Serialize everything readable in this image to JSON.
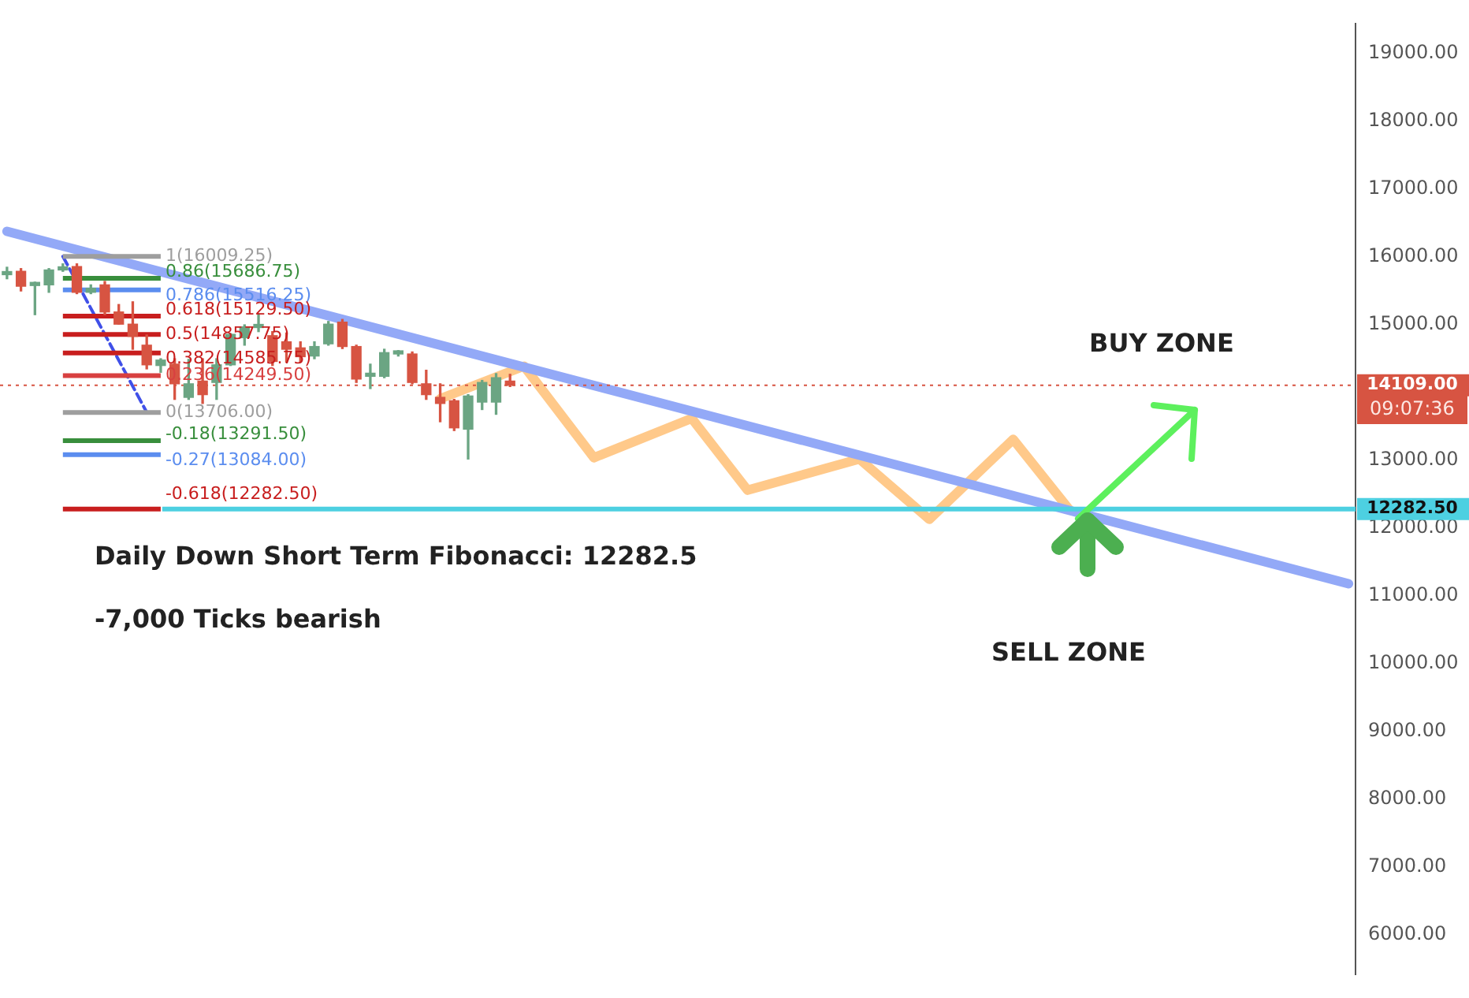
{
  "chart_data": {
    "type": "candlestick",
    "categories": [
      null,
      null,
      null,
      null,
      null,
      null,
      null,
      null,
      null,
      null,
      null,
      null,
      null,
      null,
      null,
      null,
      null,
      null,
      null,
      null,
      null,
      null,
      null,
      null,
      null,
      null,
      null,
      null,
      null,
      null,
      null,
      null,
      null,
      null,
      null,
      null,
      null,
      null,
      null,
      null,
      null,
      null,
      null,
      null,
      null,
      null,
      null,
      null,
      null,
      null,
      null,
      null,
      null,
      null,
      null,
      null,
      null,
      null,
      null,
      null,
      null,
      null,
      null,
      null,
      null,
      null,
      null,
      null,
      null,
      null,
      null,
      null,
      null,
      null,
      null,
      null,
      null,
      null,
      null,
      null,
      null,
      null,
      null,
      null,
      null,
      null,
      null,
      null,
      null,
      null,
      null,
      null,
      null,
      null,
      null,
      null,
      null
    ],
    "ohlc": [
      [
        15740,
        15850,
        15680,
        15760
      ],
      [
        15790,
        15830,
        15500,
        15570
      ],
      [
        15580,
        15630,
        15150,
        15600
      ],
      [
        15590,
        15830,
        15480,
        15810
      ],
      [
        15810,
        15900,
        15790,
        15850
      ],
      [
        15860,
        15900,
        15460,
        15480
      ],
      [
        15480,
        15590,
        15460,
        15540
      ],
      [
        15590,
        15640,
        15150,
        15190
      ],
      [
        15190,
        15300,
        15010,
        15010
      ],
      [
        15010,
        15340,
        14640,
        14830
      ],
      [
        14700,
        14850,
        14350,
        14410
      ],
      [
        14400,
        14500,
        14300,
        14480
      ],
      [
        14420,
        14500,
        13900,
        14130
      ],
      [
        13930,
        14490,
        13900,
        14130
      ],
      [
        14170,
        14500,
        13840,
        13970
      ],
      [
        14150,
        14500,
        13900,
        14410
      ],
      [
        14410,
        14870,
        14400,
        14860
      ],
      [
        14810,
        15000,
        14700,
        14970
      ],
      [
        14960,
        15160,
        14900,
        14970
      ],
      [
        14840,
        14900,
        14400,
        14460
      ],
      [
        14750,
        14880,
        14450,
        14640
      ],
      [
        14660,
        14750,
        14450,
        14530
      ],
      [
        14540,
        14750,
        14500,
        14680
      ],
      [
        14720,
        15050,
        14700,
        15010
      ],
      [
        15040,
        15080,
        14650,
        14680
      ],
      [
        14680,
        14700,
        14150,
        14200
      ],
      [
        14240,
        14420,
        14060,
        14250
      ],
      [
        14240,
        14640,
        14220,
        14590
      ],
      [
        14570,
        14620,
        14540,
        14580
      ],
      [
        14570,
        14600,
        14130,
        14150
      ],
      [
        14130,
        14330,
        13900,
        13970
      ],
      [
        13930,
        14130,
        13570,
        13840
      ],
      [
        13880,
        13900,
        13440,
        13480
      ],
      [
        13460,
        13970,
        13020,
        13950
      ],
      [
        13860,
        14180,
        13750,
        14150
      ],
      [
        13860,
        14280,
        13680,
        14220
      ],
      [
        14170,
        14270,
        14090,
        14109
      ],
      null,
      null,
      null,
      null,
      null,
      null,
      null,
      null,
      null,
      null,
      null,
      null,
      null,
      null,
      null,
      null,
      null,
      null,
      null,
      null,
      null,
      null,
      null,
      null,
      null,
      null,
      null,
      null,
      null,
      null,
      null,
      null,
      null,
      null,
      null,
      null,
      null,
      null,
      null,
      null,
      null,
      null,
      null,
      null,
      null,
      null,
      null,
      null,
      null,
      null,
      null,
      null,
      null,
      null,
      null,
      null,
      null,
      null,
      null,
      null
    ],
    "colors": [
      "#6ba583",
      "#d75442",
      "#6ba583",
      "#6ba583",
      "#6ba583",
      "#d75442",
      "#6ba583",
      "#d75442",
      "#d75442",
      "#d75442",
      "#d75442",
      "#6ba583",
      "#d75442",
      "#6ba583",
      "#d75442",
      "#6ba583",
      "#6ba583",
      "#6ba583",
      "#6ba583",
      "#d75442",
      "#d75442",
      "#d75442",
      "#6ba583",
      "#6ba583",
      "#d75442",
      "#d75442",
      "#6ba583",
      "#6ba583",
      "#6ba583",
      "#d75442",
      "#d75442",
      "#d75442",
      "#d75442",
      "#6ba583",
      "#6ba583",
      "#6ba583",
      "#d75442",
      null,
      null,
      null,
      null,
      null,
      null,
      null,
      null,
      null,
      null,
      null,
      null,
      null,
      null,
      null,
      null,
      null,
      null,
      null,
      null,
      null,
      null,
      null,
      null,
      null,
      null,
      null,
      null,
      null,
      null,
      null,
      null,
      null,
      null,
      null,
      null,
      null,
      null,
      null,
      null,
      null,
      null,
      null,
      null,
      null,
      null,
      null,
      null,
      null,
      null,
      null,
      null,
      null,
      null,
      null,
      null,
      null,
      null,
      null,
      null
    ],
    "series": [
      {
        "type": "line",
        "color": "#93a9f7",
        "line_style": "solid",
        "values": [
          16380,
          null,
          null,
          null,
          null,
          null,
          null,
          null,
          null,
          null,
          null,
          null,
          null,
          null,
          null,
          null,
          null,
          null,
          null,
          null,
          null,
          null,
          null,
          null,
          null,
          null,
          null,
          null,
          null,
          null,
          null,
          null,
          null,
          null,
          null,
          null,
          null,
          null,
          null,
          null,
          null,
          null,
          null,
          null,
          null,
          null,
          null,
          null,
          null,
          null,
          null,
          null,
          null,
          null,
          null,
          null,
          null,
          null,
          null,
          null,
          null,
          null,
          null,
          null,
          null,
          null,
          null,
          null,
          null,
          null,
          null,
          null,
          null,
          null,
          null,
          null,
          null,
          null,
          null,
          null,
          null,
          null,
          null,
          null,
          null,
          null,
          null,
          null,
          null,
          null,
          null,
          null,
          null,
          null,
          null,
          null,
          11180
        ]
      },
      {
        "type": "line",
        "color": "#4050e8",
        "line_style": "dashed",
        "values": [
          null,
          null,
          null,
          null,
          16010,
          null,
          null,
          null,
          null,
          null,
          13710,
          null,
          null,
          null,
          null,
          null,
          null,
          null,
          null,
          null,
          null,
          null,
          null,
          null,
          null,
          null,
          null,
          null,
          null,
          null,
          null,
          null,
          null,
          null,
          null,
          null,
          null,
          null,
          null,
          null,
          null,
          null,
          null,
          null,
          null,
          null,
          null,
          null,
          null,
          null,
          null,
          null,
          null,
          null,
          null,
          null,
          null,
          null,
          null,
          null,
          null,
          null,
          null,
          null,
          null,
          null,
          null,
          null,
          null,
          null,
          null,
          null,
          null,
          null,
          null,
          null,
          null,
          null,
          null,
          null,
          null,
          null,
          null,
          null,
          null,
          null,
          null,
          null,
          null,
          null,
          null,
          null,
          null,
          null,
          null,
          null,
          null
        ]
      },
      {
        "type": "line",
        "color": "#ffc98a",
        "line_style": "solid",
        "values": [
          null,
          null,
          null,
          null,
          null,
          null,
          null,
          null,
          null,
          null,
          null,
          null,
          null,
          null,
          null,
          null,
          null,
          null,
          null,
          null,
          null,
          null,
          null,
          null,
          null,
          null,
          null,
          null,
          null,
          null,
          null,
          13910,
          null,
          null,
          null,
          null,
          null,
          14390,
          null,
          null,
          null,
          null,
          13040,
          null,
          null,
          null,
          null,
          null,
          null,
          13620,
          null,
          null,
          null,
          12560,
          null,
          null,
          null,
          null,
          null,
          null,
          null,
          13020,
          null,
          null,
          null,
          null,
          12130,
          null,
          null,
          null,
          null,
          null,
          13310,
          null,
          null,
          null,
          12280,
          null,
          null,
          null,
          null,
          null,
          null,
          null,
          null,
          null,
          null,
          null,
          null,
          null,
          null,
          null,
          null,
          null,
          null,
          null,
          null
        ]
      }
    ],
    "ylim": [
      5420,
      19440
    ],
    "yticks": [
      {
        "value": 6000,
        "label": "6000.00"
      },
      {
        "value": 7000,
        "label": "7000.00"
      },
      {
        "value": 8000,
        "label": "8000.00"
      },
      {
        "value": 9000,
        "label": "9000.00"
      },
      {
        "value": 10000,
        "label": "10000.00"
      },
      {
        "value": 11000,
        "label": "11000.00"
      },
      {
        "value": 12000,
        "label": "12000.00"
      },
      {
        "value": 13000,
        "label": "13000.00"
      },
      {
        "value": 15000,
        "label": "15000.00"
      },
      {
        "value": 16000,
        "label": "16000.00"
      },
      {
        "value": 17000,
        "label": "17000.00"
      },
      {
        "value": 18000,
        "label": "18000.00"
      },
      {
        "value": 19000,
        "label": "19000.00"
      }
    ],
    "ref_lines": [
      {
        "axis": "y",
        "value": 16009.25,
        "label": "1(16009.25)",
        "color": "#9e9e9e"
      },
      {
        "axis": "y",
        "value": 15686.75,
        "label": "0.86(15686.75)",
        "color": "#388e3c"
      },
      {
        "axis": "y",
        "value": 15516.25,
        "label": "0.786(15516.25)",
        "color": "#5b8def"
      },
      {
        "axis": "y",
        "value": 15129.5,
        "label": "0.618(15129.50)",
        "color": "#c81e1e"
      },
      {
        "axis": "y",
        "value": 14857.75,
        "label": "0.5(14857.75)",
        "color": "#c81e1e"
      },
      {
        "axis": "y",
        "value": 14585.75,
        "label": "0.382(14585.75)",
        "color": "#c81e1e"
      },
      {
        "axis": "y",
        "value": 14249.5,
        "label": "0.236(14249.50)",
        "color": "#d84040"
      },
      {
        "axis": "y",
        "value": 13706,
        "label": "0(13706.00)",
        "color": "#9e9e9e"
      },
      {
        "axis": "y",
        "value": 13291.5,
        "label": "-0.18(13291.50)",
        "color": "#388e3c"
      },
      {
        "axis": "y",
        "value": 13084,
        "label": "-0.27(13084.00)",
        "color": "#5b8def"
      },
      {
        "axis": "y",
        "value": 12282.5,
        "label": "12282.50",
        "color": "#4dd0e1",
        "line_style": "solid"
      },
      {
        "axis": "y",
        "value": 12282.5,
        "label": "-0.618(12282.50)",
        "color": "#c81e1e"
      },
      {
        "axis": "y",
        "value": 14109,
        "label": "14109.00",
        "color": "#d75442",
        "line_style": "dotted"
      }
    ],
    "annotations": [
      "BUY ZONE",
      "SELL ZONE",
      "Daily Down Short Term Fibonacci: 12282.5",
      "-7,000 Ticks bearish",
      "09:07:36"
    ],
    "marker": "none",
    "grid": false,
    "legend": false,
    "tick_labels": "y"
  }
}
